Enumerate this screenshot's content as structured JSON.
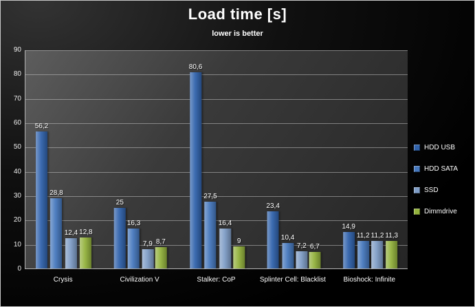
{
  "chart_data": {
    "type": "bar",
    "title": "Load time [s]",
    "subtitle": "lower is better",
    "categories": [
      "Crysis",
      "Civilization V",
      "Stalker: CoP",
      "Splinter Cell: Blacklist",
      "Bioshock: Infinite"
    ],
    "series": [
      {
        "name": "HDD USB",
        "color": "#3163ac",
        "values": [
          56.2,
          25,
          80.6,
          23.4,
          14.9
        ],
        "labels": [
          "56,2",
          "25",
          "80,6",
          "23,4",
          "14,9"
        ]
      },
      {
        "name": "HDD SATA",
        "color": "#4678bd",
        "values": [
          28.8,
          16.3,
          27.5,
          10.4,
          11.2
        ],
        "labels": [
          "28,8",
          "16,3",
          "27,5",
          "10,4",
          "11,2"
        ]
      },
      {
        "name": "SSD",
        "color": "#7f9dc6",
        "values": [
          12.4,
          7.9,
          16.4,
          7.2,
          11.2
        ],
        "labels": [
          "12,4",
          "7,9",
          "16,4",
          "7,2",
          "11,2"
        ]
      },
      {
        "name": "Dimmdrive",
        "color": "#93b23d",
        "values": [
          12.8,
          8.7,
          9,
          6.7,
          11.3
        ],
        "labels": [
          "12,8",
          "8,7",
          "9",
          "6,7",
          "11,3"
        ]
      }
    ],
    "ylim": [
      0,
      90
    ],
    "ytick_step": 10,
    "yticks": [
      0,
      10,
      20,
      30,
      40,
      50,
      60,
      70,
      80,
      90
    ],
    "grid": true,
    "legend_position": "right"
  }
}
